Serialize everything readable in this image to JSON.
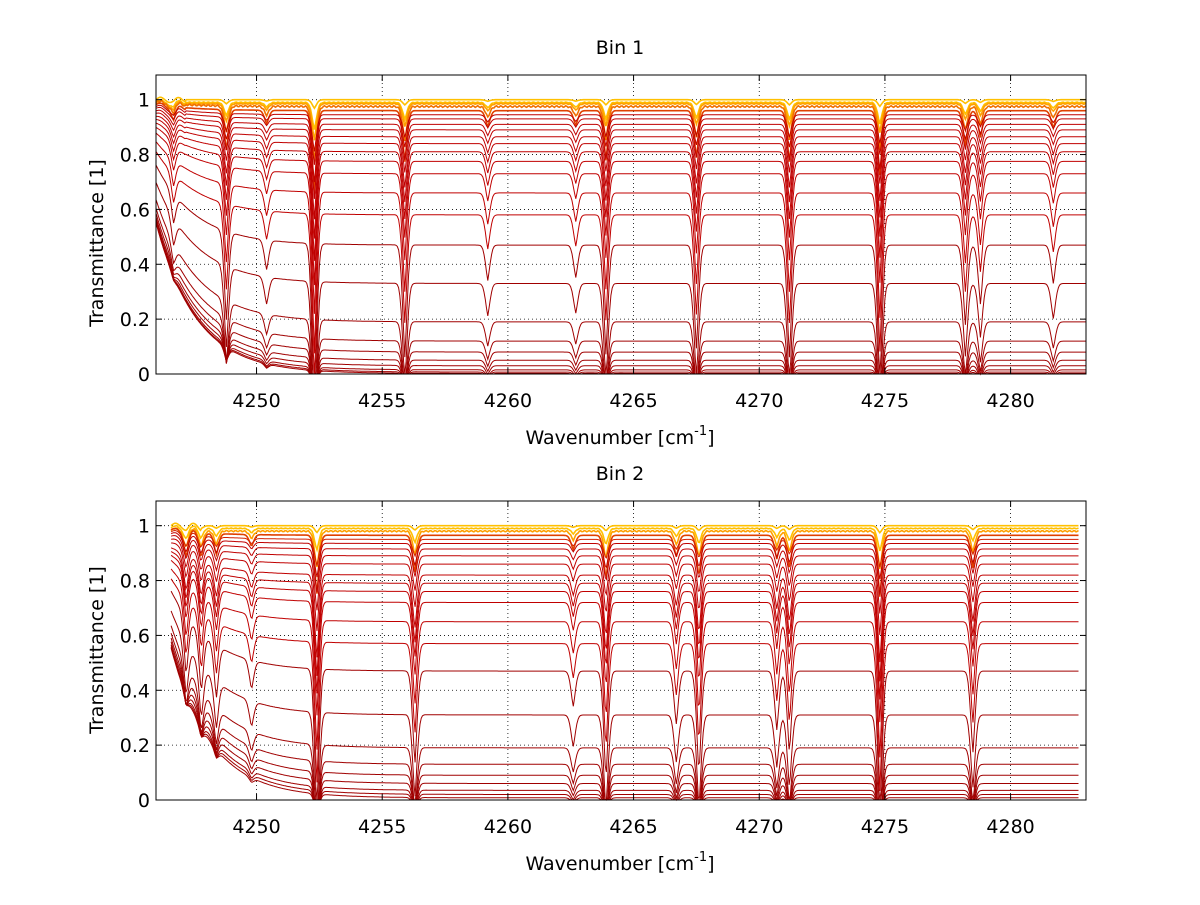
{
  "chart_data": [
    {
      "type": "line",
      "title": "Bin 1",
      "xlabel": "Wavenumber [cm",
      "xlabel_sup": "-1",
      "xlabel_suffix": "]",
      "ylabel": "Transmittance [1]",
      "xlim": [
        4246,
        4283
      ],
      "ylim": [
        0,
        1.09
      ],
      "x_ticks": [
        4250,
        4255,
        4260,
        4265,
        4270,
        4275,
        4280
      ],
      "y_ticks": [
        0,
        0.2,
        0.4,
        0.6,
        0.8,
        1
      ],
      "y_tick_labels": [
        "0",
        "0.2",
        "0.4",
        "0.6",
        "0.8",
        "1"
      ],
      "grid": true,
      "x_range": [
        4246,
        4283
      ],
      "series_count": 26,
      "levels": [
        1.0,
        0.99,
        0.985,
        0.975,
        0.96,
        0.945,
        0.93,
        0.91,
        0.89,
        0.865,
        0.84,
        0.81,
        0.775,
        0.73,
        0.66,
        0.58,
        0.47,
        0.33,
        0.19,
        0.12,
        0.08,
        0.05,
        0.03,
        0.015,
        0.007,
        0.002
      ],
      "line_colors": [
        "#a00000",
        "#c00000",
        "#d42000",
        "#e04000",
        "#f07000",
        "#ffa000",
        "#ffc000"
      ],
      "absorption_lines": [
        {
          "x": 4246.7,
          "depth": 0.1
        },
        {
          "x": 4248.8,
          "depth": 0.3
        },
        {
          "x": 4250.4,
          "depth": 0.1
        },
        {
          "x": 4252.3,
          "depth": 0.62
        },
        {
          "x": 4255.9,
          "depth": 0.38
        },
        {
          "x": 4259.2,
          "depth": 0.12
        },
        {
          "x": 4262.7,
          "depth": 0.11
        },
        {
          "x": 4263.9,
          "depth": 0.37
        },
        {
          "x": 4267.5,
          "depth": 0.35
        },
        {
          "x": 4271.2,
          "depth": 0.38
        },
        {
          "x": 4274.8,
          "depth": 0.48
        },
        {
          "x": 4278.2,
          "depth": 0.27
        },
        {
          "x": 4278.8,
          "depth": 0.2
        },
        {
          "x": 4281.7,
          "depth": 0.13
        }
      ]
    },
    {
      "type": "line",
      "title": "Bin 2",
      "xlabel": "Wavenumber [cm",
      "xlabel_sup": "-1",
      "xlabel_suffix": "]",
      "ylabel": "Transmittance [1]",
      "xlim": [
        4246,
        4283
      ],
      "ylim": [
        0,
        1.09
      ],
      "x_ticks": [
        4250,
        4255,
        4260,
        4265,
        4270,
        4275,
        4280
      ],
      "y_ticks": [
        0,
        0.2,
        0.4,
        0.6,
        0.8,
        1
      ],
      "y_tick_labels": [
        "0",
        "0.2",
        "0.4",
        "0.6",
        "0.8",
        "1"
      ],
      "grid": true,
      "x_range": [
        4246.6,
        4282.7
      ],
      "series_count": 24,
      "levels": [
        1.0,
        0.99,
        0.98,
        0.965,
        0.95,
        0.935,
        0.915,
        0.89,
        0.86,
        0.82,
        0.79,
        0.76,
        0.72,
        0.65,
        0.57,
        0.47,
        0.31,
        0.19,
        0.13,
        0.09,
        0.06,
        0.035,
        0.02,
        0.008
      ],
      "line_colors": [
        "#a00000",
        "#c00000",
        "#d42000",
        "#e04000",
        "#f07000",
        "#ffa000",
        "#ffc000"
      ],
      "absorption_lines": [
        {
          "x": 4247.2,
          "depth": 0.2
        },
        {
          "x": 4247.8,
          "depth": 0.2
        },
        {
          "x": 4248.4,
          "depth": 0.18
        },
        {
          "x": 4249.8,
          "depth": 0.1
        },
        {
          "x": 4252.4,
          "depth": 0.5
        },
        {
          "x": 4256.3,
          "depth": 0.32
        },
        {
          "x": 4262.6,
          "depth": 0.12
        },
        {
          "x": 4263.9,
          "depth": 0.37
        },
        {
          "x": 4266.7,
          "depth": 0.18
        },
        {
          "x": 4267.6,
          "depth": 0.35
        },
        {
          "x": 4270.7,
          "depth": 0.2
        },
        {
          "x": 4271.2,
          "depth": 0.28
        },
        {
          "x": 4274.8,
          "depth": 0.52
        },
        {
          "x": 4278.5,
          "depth": 0.28
        }
      ]
    }
  ]
}
